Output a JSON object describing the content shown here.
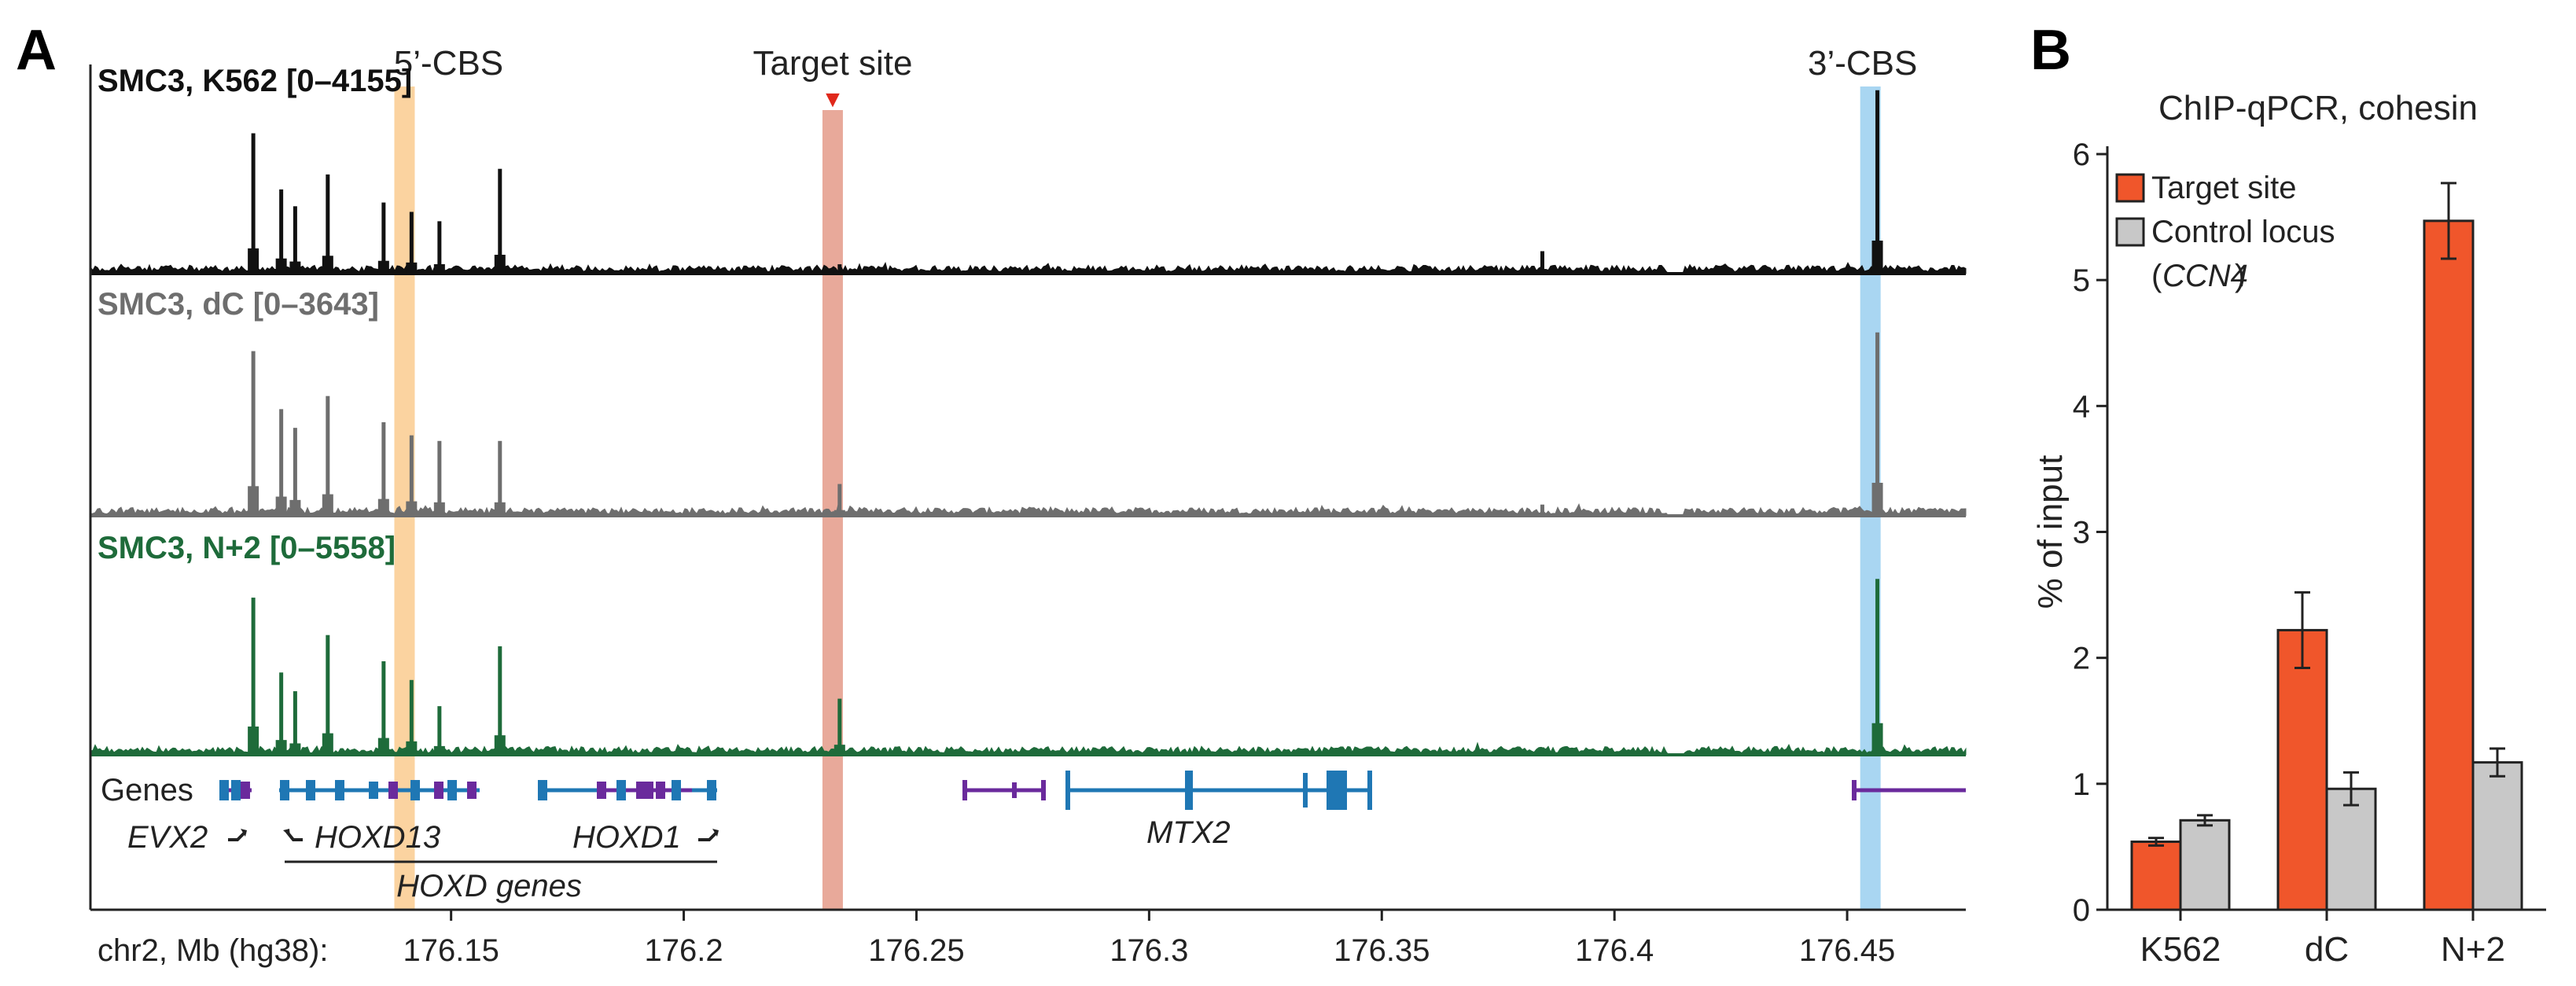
{
  "panel_labels": {
    "a": "A",
    "b": "B"
  },
  "colors": {
    "k562": "#111111",
    "dc": "#6e6e6e",
    "n2": "#1e6b3a",
    "cbs5": "#fbd3a0",
    "target_band": "#e8a99a",
    "cbs3": "#a9d6f2",
    "target_arrow": "#e0281b",
    "gene_blue": "#1f77b4",
    "gene_purple": "#6a2a9c",
    "bar_target": "#f0562b",
    "bar_control": "#c8c8c8"
  },
  "chart_data": [
    {
      "type": "line",
      "title": "",
      "highlights": [
        {
          "label": "5’-CBS",
          "x": 176.14,
          "color": "cbs5"
        },
        {
          "label": "Target site",
          "x": 176.232,
          "color": "target_band",
          "marker": "▼"
        },
        {
          "label": "3’-CBS",
          "x": 176.455,
          "color": "cbs3"
        }
      ],
      "tracks": [
        {
          "name": "SMC3, K562 [0–4155]",
          "key": "k562",
          "max": 4155
        },
        {
          "name": "SMC3, dC [0–3643]",
          "key": "dc",
          "max": 3643
        },
        {
          "name": "SMC3, N+2 [0–5558]",
          "key": "n2",
          "max": 5558
        }
      ],
      "peaks": [
        {
          "x": 176.1075,
          "k562": 0.75,
          "dc": 0.88,
          "n2": 0.84
        },
        {
          "x": 176.1135,
          "k562": 0.45,
          "dc": 0.57,
          "n2": 0.44
        },
        {
          "x": 176.1165,
          "k562": 0.36,
          "dc": 0.47,
          "n2": 0.34
        },
        {
          "x": 176.1235,
          "k562": 0.53,
          "dc": 0.64,
          "n2": 0.64
        },
        {
          "x": 176.1355,
          "k562": 0.38,
          "dc": 0.5,
          "n2": 0.5
        },
        {
          "x": 176.1415,
          "k562": 0.33,
          "dc": 0.43,
          "n2": 0.4
        },
        {
          "x": 176.1475,
          "k562": 0.28,
          "dc": 0.4,
          "n2": 0.26
        },
        {
          "x": 176.1605,
          "k562": 0.56,
          "dc": 0.4,
          "n2": 0.58
        },
        {
          "x": 176.2335,
          "k562": 0.05,
          "dc": 0.17,
          "n2": 0.3
        },
        {
          "x": 176.3845,
          "k562": 0.12,
          "dc": 0.06,
          "n2": 0.04
        },
        {
          "x": 176.4565,
          "k562": 0.98,
          "dc": 0.98,
          "n2": 0.94
        }
      ],
      "x_axis": {
        "label": "chr2, Mb (hg38):",
        "ticks": [
          176.15,
          176.2,
          176.25,
          176.3,
          176.35,
          176.4,
          176.45
        ],
        "tick_labels": [
          "176.15",
          "176.2",
          "176.25",
          "176.3",
          "176.35",
          "176.4",
          "176.45"
        ],
        "range": [
          176.0725,
          176.4755
        ]
      },
      "genes": {
        "row_label": "Genes",
        "names": [
          "EVX2",
          "HOXD13",
          "HOXD1",
          "MTX2"
        ],
        "group_label": "HOXD genes"
      }
    },
    {
      "type": "bar",
      "title": "ChIP-qPCR, cohesin",
      "ylabel": "% of input",
      "ylim": [
        0,
        6
      ],
      "yticks": [
        0,
        1,
        2,
        3,
        4,
        5,
        6
      ],
      "categories": [
        "K562",
        "dC",
        "N+2"
      ],
      "series": [
        {
          "name": "Target site",
          "color": "bar_target",
          "values": [
            0.54,
            2.22,
            5.47
          ],
          "errors": [
            0.03,
            0.3,
            0.3
          ]
        },
        {
          "name": "Control locus",
          "name_sub": "CCN4",
          "color": "bar_control",
          "values": [
            0.71,
            0.96,
            1.17
          ],
          "errors": [
            0.04,
            0.13,
            0.11
          ]
        }
      ],
      "legend_position": "top-left"
    }
  ]
}
